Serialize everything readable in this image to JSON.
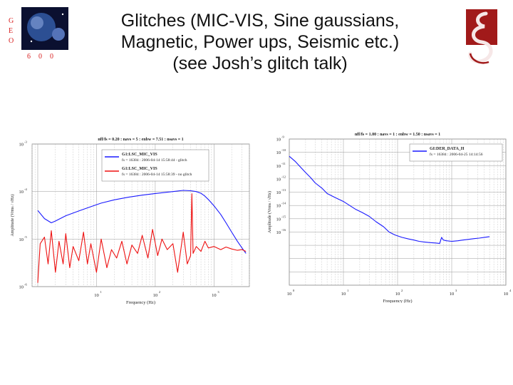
{
  "title_lines": [
    "Glitches (MIC-VIS, Sine gaussians,",
    "Magnetic, Power ups,  Seismic etc.)",
    "(see Josh’s glitch talk)"
  ],
  "logo": {
    "letters_vertical": [
      "G",
      "E",
      "O"
    ],
    "letters_horizontal": [
      "6",
      "0",
      "0"
    ]
  },
  "chart_data": [
    {
      "type": "line",
      "title": "nff/fs = 0.20 : navs = 5 : enbw = 7.51 : nsavs = 1",
      "xlabel": "Frequency (Hz)",
      "ylabel": "Amplitude (Vrms / √Hz)",
      "x_scale": "log",
      "y_scale": "log",
      "xlim": [
        0.8,
        4000
      ],
      "ylim": [
        1e-06,
        0.001
      ],
      "x_tick_labels": [
        "10",
        "10",
        "10"
      ],
      "x_tick_exps": [
        "1",
        "2",
        "3"
      ],
      "y_tick_labels": [
        "10",
        "10",
        "10",
        "10"
      ],
      "y_tick_exps": [
        "-6",
        "-5",
        "-4",
        "-3"
      ],
      "series": [
        {
          "name": "G1:LSC_MIC_VIS",
          "detail": "fs = 16384 : 2006-04-14 15:58:44 - glitch",
          "color": "#1a1aff",
          "x": [
            1,
            1.3,
            1.7,
            2,
            3,
            5,
            8,
            12,
            20,
            35,
            60,
            100,
            150,
            200,
            300,
            400,
            500,
            600,
            700,
            800,
            1000,
            1300,
            1600,
            2000,
            2500,
            3000,
            3500
          ],
          "y": [
            4e-05,
            2.7e-05,
            2.2e-05,
            2.4e-05,
            3.1e-05,
            3.9e-05,
            4.8e-05,
            5.7e-05,
            6.7e-05,
            7.6e-05,
            8.4e-05,
            9.1e-05,
            9.6e-05,
            0.0001,
            0.000106,
            0.000104,
            0.0001,
            9.2e-05,
            8e-05,
            6.8e-05,
            5e-05,
            3.3e-05,
            2.2e-05,
            1.4e-05,
            9e-06,
            6.5e-06,
            5e-06
          ]
        },
        {
          "name": "G1:LSC_MIC_VIS",
          "detail": "fs = 16384 : 2006-04-14 15:58:39 - no glitch",
          "color": "#ee1111",
          "x": [
            1,
            1.1,
            1.3,
            1.5,
            1.7,
            2,
            2.3,
            2.7,
            3,
            3.5,
            4,
            5,
            6,
            7,
            8,
            10,
            12,
            15,
            18,
            22,
            27,
            33,
            40,
            50,
            60,
            75,
            90,
            110,
            130,
            160,
            200,
            240,
            300,
            350,
            400,
            420,
            440,
            500,
            600,
            700,
            800,
            1000,
            1300,
            1600,
            2000,
            2500,
            3000,
            3500
          ],
          "y": [
            1.2e-06,
            8e-06,
            1.1e-05,
            3e-06,
            1.5e-05,
            2e-06,
            9e-06,
            3e-06,
            1.3e-05,
            2.5e-06,
            7e-06,
            3.5e-06,
            1.4e-05,
            3e-06,
            8e-06,
            2e-06,
            1e-05,
            2.5e-06,
            6e-06,
            4e-06,
            9e-06,
            3e-06,
            7.5e-06,
            5e-06,
            1.2e-05,
            4e-06,
            1.6e-05,
            4.5e-06,
            1e-05,
            6e-06,
            8e-06,
            2e-06,
            1.4e-05,
            3e-06,
            4.5e-06,
            9e-05,
            5e-06,
            7e-06,
            5.5e-06,
            9e-06,
            6.5e-06,
            7e-06,
            6e-06,
            6.8e-06,
            6.2e-06,
            5.8e-06,
            6e-06,
            5.5e-06
          ]
        }
      ]
    },
    {
      "type": "line",
      "title": "nff/fs = 1.00 : navs = 1 : enbw = 1.50 : nsavs = 1",
      "xlabel": "Frequency (Hz)",
      "ylabel": "Amplitude (Vrms / √Hz)",
      "x_scale": "log",
      "y_scale": "log",
      "xlim": [
        1,
        10000
      ],
      "ylim": [
        1e-20,
        1e-09
      ],
      "x_tick_labels": [
        "10",
        "10",
        "10",
        "10",
        "10"
      ],
      "x_tick_exps": [
        "0",
        "1",
        "2",
        "3",
        "4"
      ],
      "y_tick_labels": [
        "10",
        "10",
        "10",
        "10",
        "10",
        "10",
        "10",
        "10"
      ],
      "y_tick_exps": [
        "-9",
        "-10",
        "-11",
        "-12",
        "-13",
        "-14",
        "-15",
        "-16"
      ],
      "series": [
        {
          "name": "GI:DER_DATA_H",
          "detail": "fs = 16384 : 2006-04-25 14:14:56",
          "color": "#1a1aff",
          "x": [
            1,
            1.3,
            1.6,
            2,
            2.5,
            3,
            4,
            5,
            7,
            10,
            13,
            17,
            22,
            30,
            40,
            55,
            70,
            90,
            120,
            160,
            200,
            250,
            300,
            400,
            500,
            600,
            650,
            700,
            800,
            1000,
            1300,
            1600,
            2000,
            2600,
            3200,
            4000,
            5000
          ],
          "y": [
            5e-11,
            2e-11,
            8e-12,
            3e-12,
            1.2e-12,
            5e-13,
            2e-13,
            8e-14,
            4e-14,
            2e-14,
            1e-14,
            5e-15,
            3e-15,
            1.5e-15,
            6e-16,
            2.5e-16,
            1e-16,
            6e-17,
            4e-17,
            3e-17,
            2.5e-17,
            2e-17,
            1.8e-17,
            1.6e-17,
            1.5e-17,
            1.4e-17,
            4e-17,
            2.5e-17,
            2.2e-17,
            2e-17,
            2.2e-17,
            2.5e-17,
            2.8e-17,
            3.2e-17,
            3.5e-17,
            4e-17,
            4.5e-17
          ]
        }
      ]
    }
  ]
}
